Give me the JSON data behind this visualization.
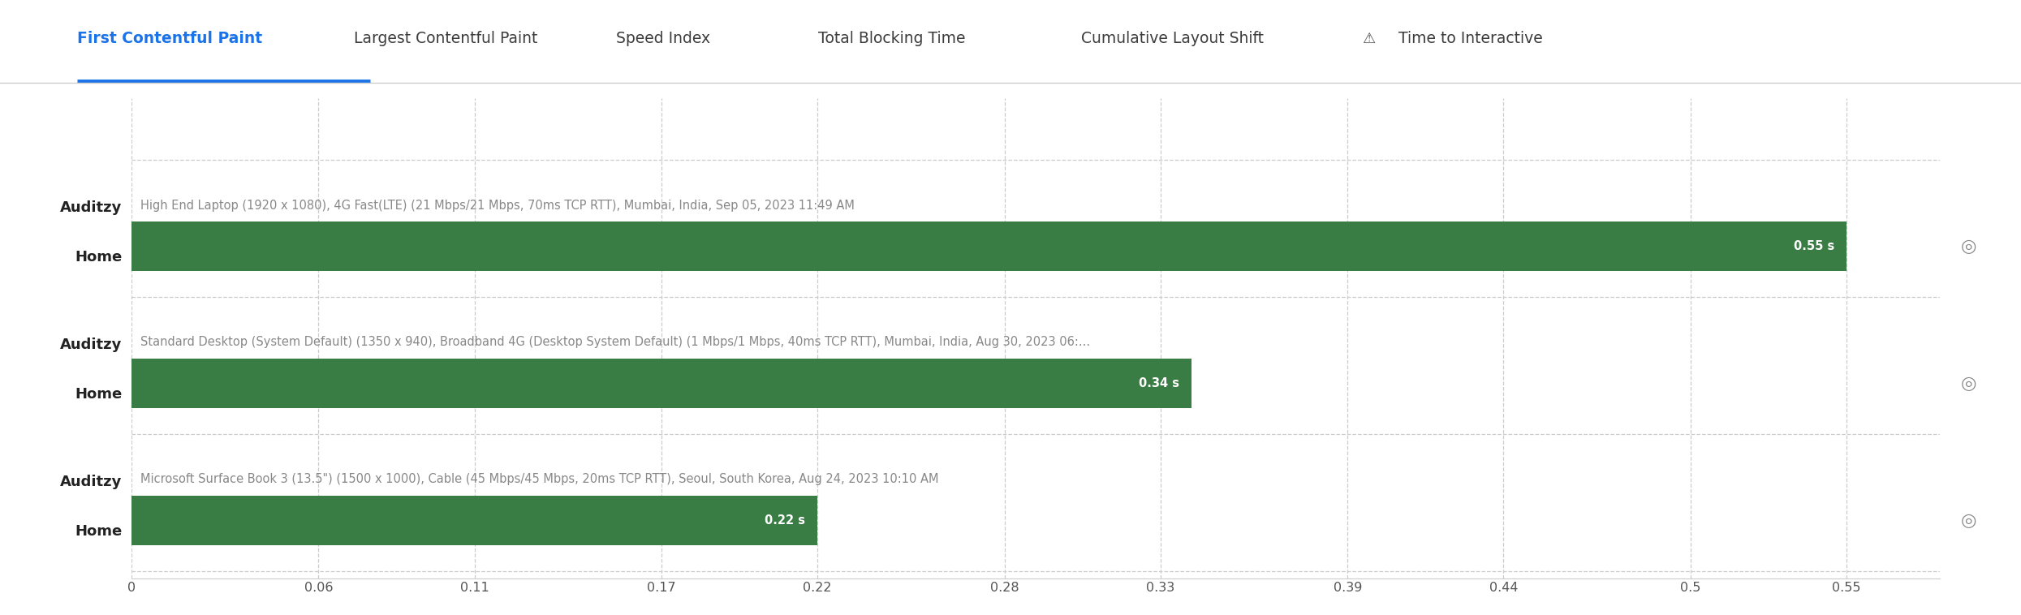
{
  "tab_labels": [
    "First Contentful Paint",
    "Largest Contentful Paint",
    "Speed Index",
    "Total Blocking Time",
    "Cumulative Layout Shift",
    "Time to Interactive"
  ],
  "active_tab": "First Contentful Paint",
  "active_tab_color": "#1a73e8",
  "tab_color": "#3c3c3c",
  "rows": [
    {
      "label_line1": "Auditzy",
      "label_line2": "Home",
      "description": "High End Laptop (1920 x 1080), 4G Fast(LTE) (21 Mbps/21 Mbps, 70ms TCP RTT), Mumbai, India, Sep 05, 2023 11:49 AM",
      "value": 0.55,
      "bar_color": "#3a7d44"
    },
    {
      "label_line1": "Auditzy",
      "label_line2": "Home",
      "description": "Standard Desktop (System Default) (1350 x 940), Broadband 4G (Desktop System Default) (1 Mbps/1 Mbps, 40ms TCP RTT), Mumbai, India, Aug 30, 2023 06:...",
      "value": 0.34,
      "bar_color": "#3a7d44"
    },
    {
      "label_line1": "Auditzy",
      "label_line2": "Home",
      "description": "Microsoft Surface Book 3 (13.5\") (1500 x 1000), Cable (45 Mbps/45 Mbps, 20ms TCP RTT), Seoul, South Korea, Aug 24, 2023 10:10 AM",
      "value": 0.22,
      "bar_color": "#3a7d44"
    }
  ],
  "x_ticks": [
    0,
    0.06,
    0.11,
    0.17,
    0.22,
    0.28,
    0.33,
    0.39,
    0.44,
    0.5,
    0.55
  ],
  "xlim": [
    0,
    0.58
  ],
  "background_color": "#ffffff",
  "grid_color": "#cccccc",
  "desc_color": "#888888",
  "label_color": "#222222",
  "bar_label_color": "#ffffff",
  "tick_label_color": "#555555",
  "tab_fontsize": 13.5,
  "label_fontsize": 13,
  "desc_fontsize": 10.5,
  "bar_label_fontsize": 10.5,
  "tick_fontsize": 11.5,
  "tab_positions": [
    0.038,
    0.175,
    0.305,
    0.405,
    0.535,
    0.685
  ],
  "underline_widths": [
    0.145,
    0,
    0,
    0,
    0,
    0
  ]
}
